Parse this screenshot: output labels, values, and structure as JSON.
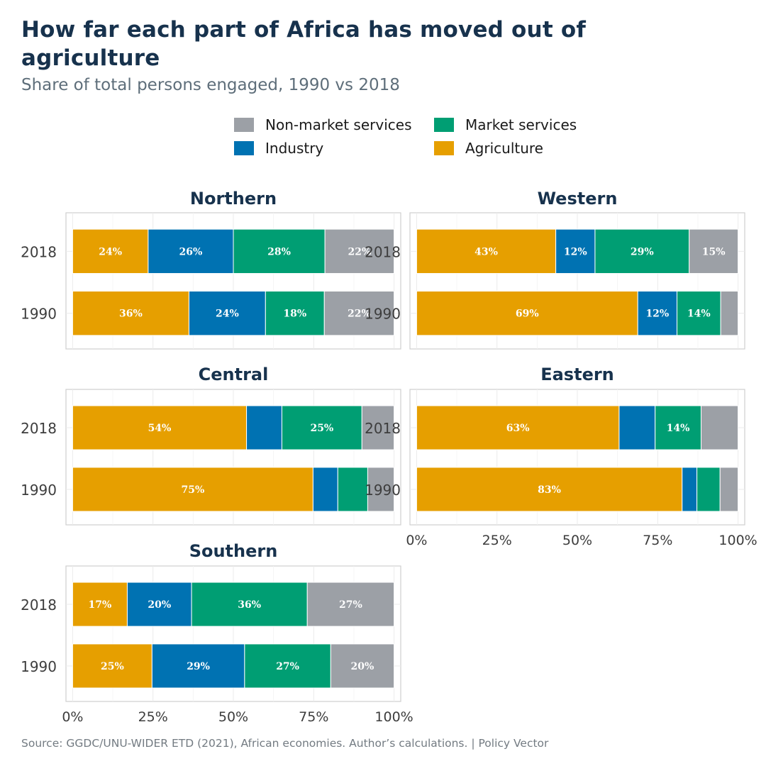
{
  "title": "How far each part of Africa has moved out of agriculture",
  "subtitle": "Share of total persons engaged, 1990 vs 2018",
  "source": "Source: GGDC/UNU-WIDER ETD (2021), African economies. Author’s calculations.  |  Policy Vector",
  "chart_data": {
    "type": "bar",
    "orientation": "horizontal",
    "stacked": true,
    "categories": [
      "2018",
      "1990"
    ],
    "xlim": [
      0,
      100
    ],
    "x_ticks": [
      "0%",
      "25%",
      "50%",
      "75%",
      "100%"
    ],
    "grid": true,
    "legend": {
      "position": "top",
      "entries": [
        {
          "name": "Non-market services",
          "color": "#9ca0a6"
        },
        {
          "name": "Market services",
          "color": "#009e73"
        },
        {
          "name": "Industry",
          "color": "#0072b2"
        },
        {
          "name": "Agriculture",
          "color": "#e69f00"
        }
      ]
    },
    "series_order": [
      "Agriculture",
      "Industry",
      "Market services",
      "Non-market services"
    ],
    "series_colors": {
      "Agriculture": "#e69f00",
      "Industry": "#0072b2",
      "Market services": "#009e73",
      "Non-market services": "#9ca0a6"
    },
    "panels": [
      {
        "name": "Northern",
        "bars": [
          {
            "year": "2018",
            "values": [
              23.5,
              26.5,
              28.5,
              21.5
            ],
            "labels": [
              "24%",
              "26%",
              "28%",
              "22%"
            ]
          },
          {
            "year": "1990",
            "values": [
              36.2,
              23.8,
              18.3,
              21.7
            ],
            "labels": [
              "36%",
              "24%",
              "18%",
              "22%"
            ]
          }
        ]
      },
      {
        "name": "Western",
        "bars": [
          {
            "year": "2018",
            "values": [
              43.3,
              12.2,
              29.3,
              15.2
            ],
            "labels": [
              "43%",
              "12%",
              "29%",
              "15%"
            ]
          },
          {
            "year": "1990",
            "values": [
              68.8,
              12.2,
              13.6,
              5.4
            ],
            "labels": [
              "69%",
              "12%",
              "14%",
              ""
            ]
          }
        ]
      },
      {
        "name": "Central",
        "bars": [
          {
            "year": "2018",
            "values": [
              54.1,
              11.0,
              24.9,
              10.0
            ],
            "labels": [
              "54%",
              "",
              "25%",
              ""
            ]
          },
          {
            "year": "1990",
            "values": [
              74.8,
              7.7,
              9.3,
              8.2
            ],
            "labels": [
              "75%",
              "",
              "",
              ""
            ]
          }
        ]
      },
      {
        "name": "Eastern",
        "bars": [
          {
            "year": "2018",
            "values": [
              63.0,
              11.2,
              14.3,
              11.5
            ],
            "labels": [
              "63%",
              "",
              "14%",
              ""
            ]
          },
          {
            "year": "1990",
            "values": [
              82.6,
              4.6,
              7.2,
              5.6
            ],
            "labels": [
              "83%",
              "",
              "",
              ""
            ]
          }
        ]
      },
      {
        "name": "Southern",
        "bars": [
          {
            "year": "2018",
            "values": [
              17.0,
              20.0,
              36.0,
              27.0
            ],
            "labels": [
              "17%",
              "20%",
              "36%",
              "27%"
            ]
          },
          {
            "year": "1990",
            "values": [
              24.7,
              28.8,
              26.8,
              19.7
            ],
            "labels": [
              "25%",
              "29%",
              "27%",
              "20%"
            ]
          }
        ]
      }
    ]
  }
}
